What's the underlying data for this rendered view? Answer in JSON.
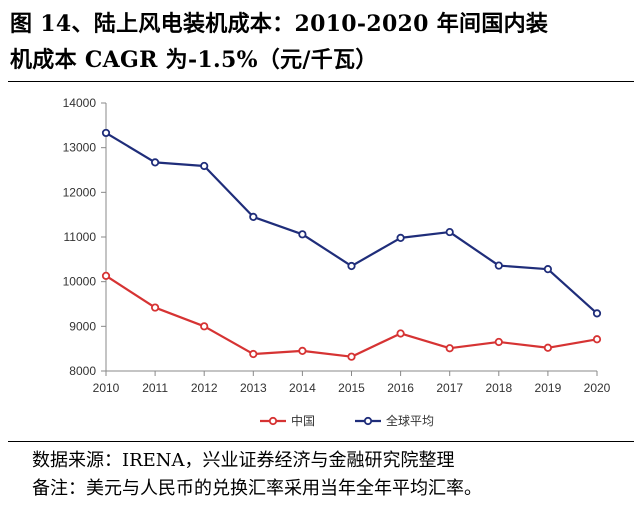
{
  "figure": {
    "title_line1": "图 14、陆上风电装机成本：2010-2020 年间国内装",
    "title_line2": "机成本 CAGR 为-1.5%（元/千瓦）"
  },
  "footer": {
    "source": "数据来源：IRENA，兴业证券经济与金融研究院整理",
    "note": "备注：美元与人民币的兑换汇率采用当年全年平均汇率。"
  },
  "chart_data": {
    "type": "line",
    "title": "",
    "xlabel": "",
    "ylabel": "",
    "x": [
      "2010",
      "2011",
      "2012",
      "2013",
      "2014",
      "2015",
      "2016",
      "2017",
      "2018",
      "2019",
      "2020"
    ],
    "ylim": [
      8000,
      14000
    ],
    "yticks": [
      8000,
      9000,
      10000,
      11000,
      12000,
      13000,
      14000
    ],
    "grid": false,
    "legend_position": "bottom",
    "series": [
      {
        "name": "中国",
        "color": "#d63333",
        "values": [
          10130,
          9420,
          9000,
          8380,
          8450,
          8320,
          8840,
          8510,
          8650,
          8520,
          8710
        ]
      },
      {
        "name": "全球平均",
        "color": "#1f2d7a",
        "values": [
          13330,
          12670,
          12590,
          11450,
          11060,
          10350,
          10980,
          11110,
          10360,
          10280,
          9290
        ]
      }
    ]
  }
}
